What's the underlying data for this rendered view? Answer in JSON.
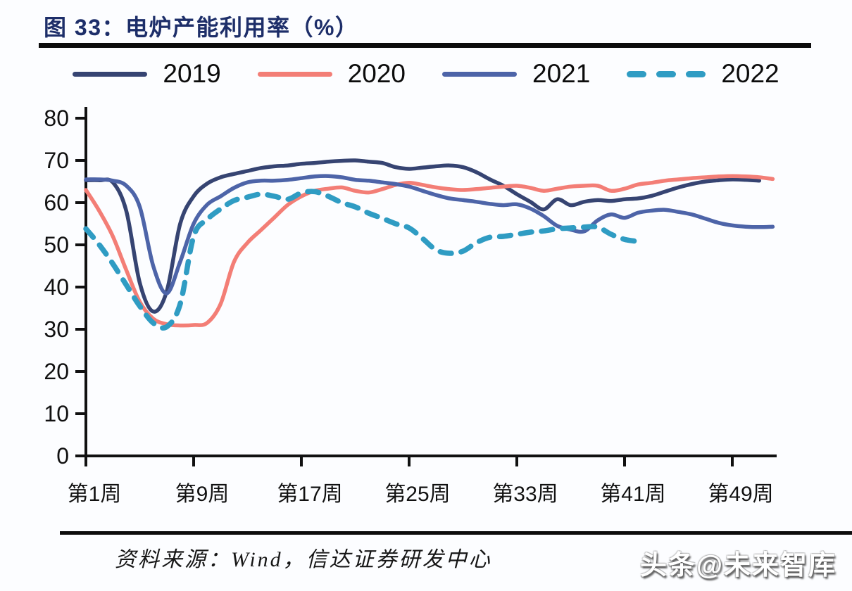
{
  "header": {
    "title": "图 33：电炉产能利用率（%）"
  },
  "legend": {
    "position": "top-center",
    "items": [
      {
        "label": "2019",
        "color": "#364472",
        "dash": false
      },
      {
        "label": "2020",
        "color": "#f37e76",
        "dash": false
      },
      {
        "label": "2021",
        "color": "#4d64a8",
        "dash": false
      },
      {
        "label": "2022",
        "color": "#2f9cc3",
        "dash": true
      }
    ]
  },
  "chart_data": {
    "type": "line",
    "title": "电炉产能利用率（%）",
    "xlabel": "",
    "ylabel": "",
    "x_unit": "week-of-year",
    "x_start": 1,
    "x_tick_labels": [
      "第1周",
      "第9周",
      "第17周",
      "第25周",
      "第33周",
      "第41周",
      "第49周"
    ],
    "x_tick_weeks": [
      1,
      9,
      17,
      25,
      33,
      41,
      49
    ],
    "ylim": [
      0,
      80
    ],
    "y_ticks": [
      0,
      10,
      20,
      30,
      40,
      50,
      60,
      70,
      80
    ],
    "grid": false,
    "series": [
      {
        "name": "2019",
        "color": "#364472",
        "style": "solid",
        "values": [
          65.3,
          65.3,
          64.8,
          58,
          41,
          34.2,
          39,
          55,
          61.5,
          64.5,
          66,
          66.8,
          67.5,
          68.2,
          68.6,
          68.8,
          69.2,
          69.4,
          69.7,
          69.9,
          70,
          69.7,
          69.4,
          68.4,
          68,
          68.3,
          68.6,
          68.8,
          68.4,
          67.2,
          65.5,
          64,
          62,
          60.2,
          58.4,
          60.8,
          59.4,
          60.2,
          60.6,
          60.4,
          60.8,
          61,
          61.6,
          62.6,
          63.6,
          64.4,
          65,
          65.3,
          65.5,
          65.4,
          65.2
        ]
      },
      {
        "name": "2020",
        "color": "#f37e76",
        "style": "solid",
        "values": [
          63,
          58,
          52,
          44,
          36.5,
          32.5,
          31.2,
          30.9,
          31,
          31.5,
          36,
          46,
          50.5,
          53.5,
          56.5,
          59.5,
          61.5,
          62.8,
          63.3,
          63.6,
          62.8,
          62.4,
          63.2,
          64.2,
          64.7,
          64.2,
          63.6,
          63.2,
          63,
          63.2,
          63.5,
          63.8,
          64,
          63.5,
          62.8,
          63.3,
          63.8,
          64,
          64,
          62.8,
          63.3,
          64.3,
          64.7,
          65.2,
          65.5,
          65.8,
          66,
          66.2,
          66.3,
          66.2,
          66,
          65.6
        ]
      },
      {
        "name": "2021",
        "color": "#4d64a8",
        "style": "solid",
        "values": [
          65.5,
          65.5,
          65.2,
          64,
          59,
          45,
          38.5,
          46,
          55,
          59.5,
          61.5,
          63.5,
          64.8,
          65.2,
          65.2,
          65.4,
          65.8,
          66.2,
          66.3,
          66,
          65.4,
          65.2,
          64.8,
          64.4,
          63.8,
          62.8,
          61.8,
          61,
          60.6,
          60.2,
          59.7,
          59.4,
          59.6,
          58.6,
          56.8,
          54.5,
          53.6,
          53.2,
          55.8,
          57.2,
          56.4,
          57.6,
          58.1,
          58.3,
          57.8,
          57.2,
          56.2,
          55.2,
          54.6,
          54.3,
          54.2,
          54.3
        ]
      },
      {
        "name": "2022",
        "color": "#2f9cc3",
        "style": "dashed",
        "values": [
          53.8,
          50,
          45.5,
          40.5,
          35.5,
          31.5,
          30.6,
          36,
          52,
          56,
          58.5,
          60.5,
          61.3,
          62,
          61.5,
          60.8,
          62.3,
          62.6,
          61.5,
          60,
          59,
          57.5,
          56.3,
          55,
          54,
          51.5,
          48.8,
          48,
          48.5,
          50.5,
          51.8,
          52,
          52.5,
          53,
          53.3,
          53.8,
          54,
          54.2,
          54.2,
          52.5,
          51.3,
          50.8
        ]
      }
    ]
  },
  "footer": {
    "source": "资料来源：Wind，信达证券研发中心",
    "watermark": "头条@未来智库"
  },
  "colors": {
    "title_text": "#1d2e69",
    "rule": "#0c0c0c",
    "axis": "#111111",
    "tick_text": "#111111",
    "background": "#fcfdff"
  }
}
